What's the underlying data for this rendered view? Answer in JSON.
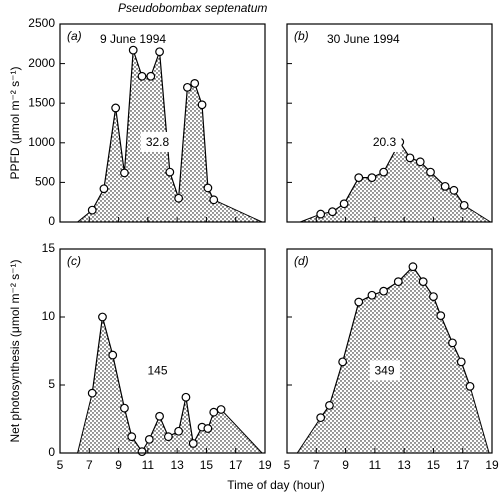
{
  "figure": {
    "title": "Pseudobombax septenatum",
    "xlabel": "Time of day (hour)"
  },
  "chart_data": [
    {
      "type": "area",
      "panel_label": "(a)",
      "date": "9 June 1994",
      "ylabel": "PPFD (μmol m⁻² s⁻¹)",
      "x": [
        7.2,
        8.0,
        8.8,
        9.4,
        10.0,
        10.6,
        11.2,
        11.8,
        12.5,
        13.1,
        13.7,
        14.2,
        14.7,
        15.1,
        15.5
      ],
      "values": [
        150,
        420,
        1440,
        620,
        2170,
        1840,
        1840,
        2150,
        630,
        300,
        1700,
        1750,
        1480,
        430,
        280
      ],
      "area_x": [
        6.2,
        18.8
      ],
      "total": 32.8,
      "color": "#000000",
      "xlim": [
        5,
        19
      ],
      "xticks": [
        5,
        7,
        9,
        11,
        13,
        15,
        17,
        19
      ],
      "ylim": [
        0,
        2500
      ],
      "yticks": [
        0,
        500,
        1000,
        1500,
        2000,
        2500
      ],
      "show_xticklabels": false,
      "show_yticklabels": true
    },
    {
      "type": "area",
      "panel_label": "(b)",
      "date": "30 June 1994",
      "x": [
        7.3,
        8.1,
        8.9,
        9.9,
        10.8,
        11.6,
        12.7,
        13.4,
        14.1,
        14.8,
        15.8,
        16.4,
        17.1
      ],
      "values": [
        100,
        130,
        230,
        560,
        560,
        630,
        1010,
        810,
        760,
        630,
        450,
        400,
        210
      ],
      "area_x": [
        5.9,
        18.9
      ],
      "total": 20.3,
      "color": "#000000",
      "xlim": [
        5,
        19
      ],
      "xticks": [
        5,
        7,
        9,
        11,
        13,
        15,
        17,
        19
      ],
      "ylim": [
        0,
        2500
      ],
      "yticks": [
        0,
        500,
        1000,
        1500,
        2000,
        2500
      ],
      "show_xticklabels": false,
      "show_yticklabels": false
    },
    {
      "type": "area",
      "panel_label": "(c)",
      "ylabel": "Net photosynthesis (μmol m⁻² s⁻¹)",
      "x": [
        7.2,
        7.9,
        8.6,
        9.4,
        9.9,
        10.6,
        11.1,
        11.8,
        12.4,
        13.1,
        13.6,
        14.1,
        14.7,
        15.1,
        15.5,
        16.0
      ],
      "values": [
        4.4,
        10.0,
        7.2,
        3.3,
        1.2,
        0.1,
        1.0,
        2.7,
        1.2,
        1.6,
        4.1,
        0.7,
        1.9,
        1.8,
        3.0,
        3.2
      ],
      "area_x": [
        6.2,
        18.8
      ],
      "total": 145,
      "color": "#000000",
      "xlim": [
        5,
        19
      ],
      "xticks": [
        5,
        7,
        9,
        11,
        13,
        15,
        17,
        19
      ],
      "ylim": [
        0,
        15
      ],
      "yticks": [
        0,
        5,
        10,
        15
      ],
      "show_xticklabels": true,
      "show_yticklabels": true
    },
    {
      "type": "area",
      "panel_label": "(d)",
      "x": [
        7.3,
        7.9,
        8.8,
        9.9,
        10.8,
        11.6,
        12.6,
        13.6,
        14.3,
        15.0,
        15.5,
        16.3,
        16.9,
        17.5
      ],
      "values": [
        2.6,
        3.5,
        6.7,
        11.1,
        11.6,
        11.9,
        12.6,
        13.7,
        12.6,
        11.5,
        10.1,
        8.1,
        6.7,
        4.9
      ],
      "area_x": [
        5.7,
        18.8
      ],
      "total": 349,
      "color": "#000000",
      "xlim": [
        5,
        19
      ],
      "xticks": [
        5,
        7,
        9,
        11,
        13,
        15,
        17,
        19
      ],
      "ylim": [
        0,
        15
      ],
      "yticks": [
        0,
        5,
        10,
        15
      ],
      "show_xticklabels": true,
      "show_yticklabels": false
    }
  ]
}
